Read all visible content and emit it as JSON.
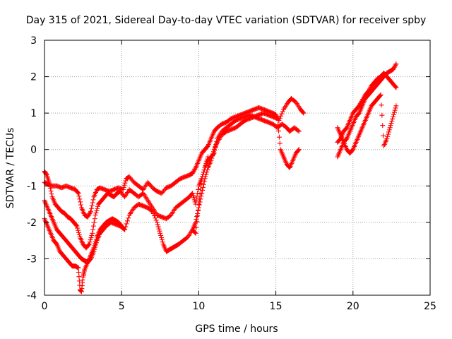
{
  "chart_data": {
    "type": "scatter",
    "title": "Day 315 of 2021, Sidereal Day-to-day VTEC variation (SDTVAR) for receiver spby",
    "xlabel": "GPS time / hours",
    "ylabel": "SDTVAR / TECUs",
    "xlim": [
      0,
      25
    ],
    "ylim": [
      -4,
      3
    ],
    "x_ticks": [
      0,
      5,
      10,
      15,
      20,
      25
    ],
    "y_ticks": [
      -4,
      -3,
      -2,
      -1,
      0,
      1,
      2,
      3
    ],
    "grid": true,
    "marker": "+",
    "color": "#ff0000",
    "series": [
      {
        "points": [
          [
            0.0,
            -0.9
          ],
          [
            0.2,
            -0.95
          ],
          [
            0.5,
            -1.0
          ],
          [
            0.8,
            -1.0
          ],
          [
            1.1,
            -1.05
          ],
          [
            1.4,
            -1.0
          ],
          [
            1.7,
            -1.05
          ],
          [
            2.0,
            -1.1
          ],
          [
            2.2,
            -1.2
          ],
          [
            2.4,
            -1.6
          ],
          [
            2.6,
            -1.8
          ],
          [
            2.8,
            -1.85
          ],
          [
            3.0,
            -1.7
          ],
          [
            3.2,
            -1.3
          ],
          [
            3.4,
            -1.1
          ],
          [
            3.6,
            -1.05
          ],
          [
            3.9,
            -1.1
          ],
          [
            4.2,
            -1.15
          ],
          [
            4.5,
            -1.1
          ],
          [
            4.8,
            -1.05
          ],
          [
            5.1,
            -1.1
          ],
          [
            5.3,
            -0.8
          ],
          [
            5.5,
            -0.75
          ],
          [
            5.8,
            -0.9
          ],
          [
            6.1,
            -1.0
          ],
          [
            6.4,
            -1.1
          ],
          [
            6.7,
            -0.9
          ],
          [
            7.0,
            -1.05
          ],
          [
            7.3,
            -1.15
          ],
          [
            7.6,
            -1.2
          ],
          [
            7.9,
            -1.05
          ],
          [
            8.2,
            -1.0
          ],
          [
            8.5,
            -0.9
          ],
          [
            8.8,
            -0.8
          ],
          [
            9.1,
            -0.75
          ],
          [
            9.4,
            -0.7
          ],
          [
            9.6,
            -0.65
          ],
          [
            9.8,
            -0.5
          ],
          [
            10.0,
            -0.3
          ],
          [
            10.2,
            -0.1
          ],
          [
            10.4,
            0.0
          ],
          [
            10.6,
            0.1
          ],
          [
            10.8,
            0.3
          ],
          [
            11.0,
            0.5
          ],
          [
            11.2,
            0.6
          ],
          [
            11.5,
            0.7
          ],
          [
            11.8,
            0.75
          ],
          [
            12.1,
            0.85
          ],
          [
            12.4,
            0.9
          ],
          [
            12.7,
            0.95
          ],
          [
            13.0,
            1.0
          ],
          [
            13.3,
            1.05
          ],
          [
            13.6,
            1.1
          ],
          [
            13.9,
            1.15
          ],
          [
            14.2,
            1.1
          ],
          [
            14.5,
            1.05
          ],
          [
            14.8,
            1.0
          ],
          [
            15.0,
            0.95
          ],
          [
            15.2,
            0.8
          ],
          [
            15.5,
            1.1
          ],
          [
            15.8,
            1.3
          ],
          [
            16.0,
            1.4
          ],
          [
            16.3,
            1.3
          ],
          [
            16.6,
            1.1
          ],
          [
            16.8,
            1.0
          ]
        ]
      },
      {
        "points": [
          [
            0.0,
            -0.6
          ],
          [
            0.15,
            -0.7
          ],
          [
            0.3,
            -0.9
          ],
          [
            0.5,
            -1.3
          ],
          [
            0.7,
            -1.5
          ],
          [
            0.9,
            -1.6
          ],
          [
            1.1,
            -1.7
          ],
          [
            1.3,
            -1.75
          ],
          [
            1.5,
            -1.85
          ],
          [
            1.7,
            -1.9
          ],
          [
            1.9,
            -2.0
          ],
          [
            2.1,
            -2.1
          ],
          [
            2.3,
            -2.4
          ],
          [
            2.5,
            -2.6
          ],
          [
            2.7,
            -2.7
          ],
          [
            2.9,
            -2.6
          ],
          [
            3.1,
            -2.3
          ],
          [
            3.3,
            -1.8
          ],
          [
            3.5,
            -1.5
          ],
          [
            3.7,
            -1.4
          ],
          [
            3.9,
            -1.3
          ],
          [
            4.1,
            -1.2
          ],
          [
            4.3,
            -1.25
          ],
          [
            4.5,
            -1.3
          ],
          [
            4.7,
            -1.2
          ],
          [
            4.9,
            -1.15
          ],
          [
            5.2,
            -1.3
          ],
          [
            5.5,
            -1.1
          ],
          [
            5.8,
            -1.2
          ],
          [
            6.1,
            -1.3
          ],
          [
            6.4,
            -1.2
          ],
          [
            6.7,
            -1.4
          ],
          [
            7.0,
            -1.6
          ],
          [
            7.3,
            -1.8
          ],
          [
            7.6,
            -1.85
          ],
          [
            7.9,
            -1.9
          ],
          [
            8.2,
            -1.8
          ],
          [
            8.5,
            -1.6
          ],
          [
            8.8,
            -1.5
          ],
          [
            9.1,
            -1.4
          ],
          [
            9.4,
            -1.3
          ],
          [
            9.6,
            -1.2
          ],
          [
            9.8,
            -1.5
          ],
          [
            10.0,
            -1.0
          ],
          [
            10.2,
            -0.8
          ],
          [
            10.4,
            -0.5
          ],
          [
            10.6,
            -0.3
          ],
          [
            10.8,
            -0.2
          ],
          [
            11.0,
            -0.1
          ],
          [
            11.2,
            0.3
          ],
          [
            11.5,
            0.5
          ],
          [
            11.8,
            0.6
          ],
          [
            12.1,
            0.7
          ],
          [
            12.4,
            0.8
          ],
          [
            12.7,
            0.85
          ],
          [
            13.0,
            0.9
          ],
          [
            13.3,
            0.95
          ],
          [
            13.6,
            0.9
          ],
          [
            13.9,
            0.85
          ],
          [
            14.2,
            0.8
          ],
          [
            14.5,
            0.75
          ],
          [
            14.8,
            0.7
          ],
          [
            15.1,
            0.6
          ],
          [
            15.4,
            0.7
          ],
          [
            15.7,
            0.6
          ],
          [
            15.9,
            0.5
          ],
          [
            16.2,
            0.6
          ],
          [
            16.5,
            0.5
          ]
        ]
      },
      {
        "points": [
          [
            0.0,
            -1.4
          ],
          [
            0.2,
            -1.6
          ],
          [
            0.4,
            -1.8
          ],
          [
            0.6,
            -2.0
          ],
          [
            0.8,
            -2.2
          ],
          [
            1.0,
            -2.3
          ],
          [
            1.2,
            -2.4
          ],
          [
            1.4,
            -2.5
          ],
          [
            1.6,
            -2.6
          ],
          [
            1.8,
            -2.7
          ],
          [
            2.0,
            -2.8
          ],
          [
            2.2,
            -2.9
          ],
          [
            2.4,
            -3.0
          ],
          [
            2.6,
            -3.05
          ],
          [
            2.8,
            -3.1
          ],
          [
            3.0,
            -2.9
          ],
          [
            3.2,
            -2.7
          ],
          [
            3.4,
            -2.4
          ],
          [
            3.6,
            -2.2
          ],
          [
            3.8,
            -2.1
          ],
          [
            4.0,
            -2.0
          ],
          [
            4.2,
            -1.95
          ],
          [
            4.4,
            -1.9
          ],
          [
            4.6,
            -1.95
          ],
          [
            4.8,
            -2.0
          ],
          [
            5.0,
            -2.1
          ],
          [
            5.2,
            -2.2
          ],
          [
            5.5,
            -1.8
          ],
          [
            5.8,
            -1.6
          ],
          [
            6.1,
            -1.5
          ],
          [
            6.4,
            -1.55
          ],
          [
            6.7,
            -1.6
          ],
          [
            7.0,
            -1.7
          ],
          [
            7.3,
            -2.0
          ],
          [
            7.5,
            -2.3
          ],
          [
            7.7,
            -2.6
          ],
          [
            7.9,
            -2.8
          ],
          [
            8.1,
            -2.75
          ],
          [
            8.3,
            -2.7
          ],
          [
            8.5,
            -2.65
          ],
          [
            8.7,
            -2.6
          ],
          [
            9.0,
            -2.5
          ],
          [
            9.3,
            -2.4
          ],
          [
            9.6,
            -2.2
          ],
          [
            9.8,
            -2.0
          ],
          [
            10.0,
            -1.6
          ],
          [
            10.2,
            -1.2
          ],
          [
            10.4,
            -0.8
          ],
          [
            10.6,
            -0.5
          ],
          [
            10.8,
            -0.3
          ],
          [
            11.0,
            0.0
          ],
          [
            11.2,
            0.2
          ],
          [
            11.5,
            0.4
          ],
          [
            11.8,
            0.5
          ],
          [
            12.1,
            0.55
          ],
          [
            12.4,
            0.6
          ],
          [
            12.7,
            0.7
          ],
          [
            13.0,
            0.8
          ],
          [
            13.3,
            0.85
          ],
          [
            13.6,
            0.9
          ],
          [
            13.9,
            0.95
          ],
          [
            14.2,
            1.0
          ],
          [
            14.5,
            0.95
          ],
          [
            14.8,
            0.9
          ],
          [
            15.1,
            0.85
          ],
          [
            15.3,
            0.0
          ],
          [
            15.5,
            -0.2
          ],
          [
            15.7,
            -0.4
          ],
          [
            15.9,
            -0.5
          ],
          [
            16.1,
            -0.3
          ],
          [
            16.3,
            -0.1
          ],
          [
            16.5,
            0.0
          ]
        ]
      },
      {
        "points": [
          [
            0.0,
            -1.9
          ],
          [
            0.2,
            -2.1
          ],
          [
            0.4,
            -2.3
          ],
          [
            0.6,
            -2.5
          ],
          [
            0.8,
            -2.6
          ],
          [
            1.0,
            -2.8
          ],
          [
            1.2,
            -2.9
          ],
          [
            1.4,
            -3.0
          ],
          [
            1.6,
            -3.1
          ],
          [
            1.8,
            -3.2
          ],
          [
            2.0,
            -3.2
          ],
          [
            2.2,
            -3.25
          ],
          [
            2.3,
            -3.85
          ],
          [
            2.4,
            -3.9
          ],
          [
            2.5,
            -3.5
          ],
          [
            2.6,
            -3.3
          ],
          [
            2.8,
            -3.1
          ],
          [
            3.0,
            -3.0
          ],
          [
            3.2,
            -2.8
          ],
          [
            3.4,
            -2.5
          ],
          [
            3.6,
            -2.3
          ],
          [
            3.8,
            -2.2
          ],
          [
            4.0,
            -2.1
          ],
          [
            4.3,
            -2.0
          ],
          [
            4.6,
            -2.05
          ],
          [
            4.9,
            -2.1
          ],
          [
            5.2,
            -2.2
          ],
          [
            9.6,
            -2.2
          ],
          [
            9.8,
            -2.3
          ],
          [
            10.0,
            -1.5
          ],
          [
            10.2,
            -0.8
          ],
          [
            10.4,
            -0.5
          ],
          [
            10.6,
            -0.2
          ]
        ]
      },
      {
        "points": [
          [
            19.0,
            -0.2
          ],
          [
            19.2,
            0.0
          ],
          [
            19.4,
            0.2
          ],
          [
            19.6,
            0.3
          ],
          [
            19.8,
            0.5
          ],
          [
            20.0,
            0.7
          ],
          [
            20.2,
            0.9
          ],
          [
            20.4,
            1.0
          ],
          [
            20.6,
            1.2
          ],
          [
            20.8,
            1.4
          ],
          [
            21.0,
            1.5
          ],
          [
            21.2,
            1.6
          ],
          [
            21.4,
            1.7
          ],
          [
            21.6,
            1.8
          ],
          [
            21.8,
            1.9
          ],
          [
            22.0,
            2.0
          ],
          [
            22.2,
            2.1
          ],
          [
            22.4,
            2.15
          ],
          [
            22.6,
            2.2
          ],
          [
            22.8,
            2.35
          ]
        ]
      },
      {
        "points": [
          [
            19.0,
            0.2
          ],
          [
            19.2,
            0.3
          ],
          [
            19.4,
            0.5
          ],
          [
            19.6,
            0.6
          ],
          [
            19.8,
            0.8
          ],
          [
            20.0,
            1.0
          ],
          [
            20.2,
            1.1
          ],
          [
            20.4,
            1.2
          ],
          [
            20.6,
            1.35
          ],
          [
            20.8,
            1.5
          ],
          [
            21.0,
            1.6
          ],
          [
            21.2,
            1.75
          ],
          [
            21.4,
            1.85
          ],
          [
            21.6,
            1.95
          ],
          [
            21.8,
            2.0
          ],
          [
            22.0,
            2.1
          ],
          [
            22.2,
            2.0
          ],
          [
            22.4,
            1.9
          ],
          [
            22.6,
            1.8
          ],
          [
            22.8,
            1.7
          ]
        ]
      },
      {
        "points": [
          [
            19.0,
            0.6
          ],
          [
            19.2,
            0.4
          ],
          [
            19.4,
            0.2
          ],
          [
            19.6,
            0.0
          ],
          [
            19.8,
            -0.1
          ],
          [
            20.0,
            0.0
          ],
          [
            20.2,
            0.2
          ],
          [
            20.4,
            0.4
          ],
          [
            20.6,
            0.6
          ],
          [
            20.8,
            0.8
          ],
          [
            21.0,
            1.0
          ],
          [
            21.2,
            1.2
          ],
          [
            21.4,
            1.3
          ],
          [
            21.6,
            1.4
          ],
          [
            21.8,
            1.5
          ],
          [
            22.0,
            0.1
          ],
          [
            22.2,
            0.3
          ],
          [
            22.4,
            0.6
          ],
          [
            22.6,
            0.9
          ],
          [
            22.8,
            1.2
          ]
        ]
      }
    ]
  }
}
